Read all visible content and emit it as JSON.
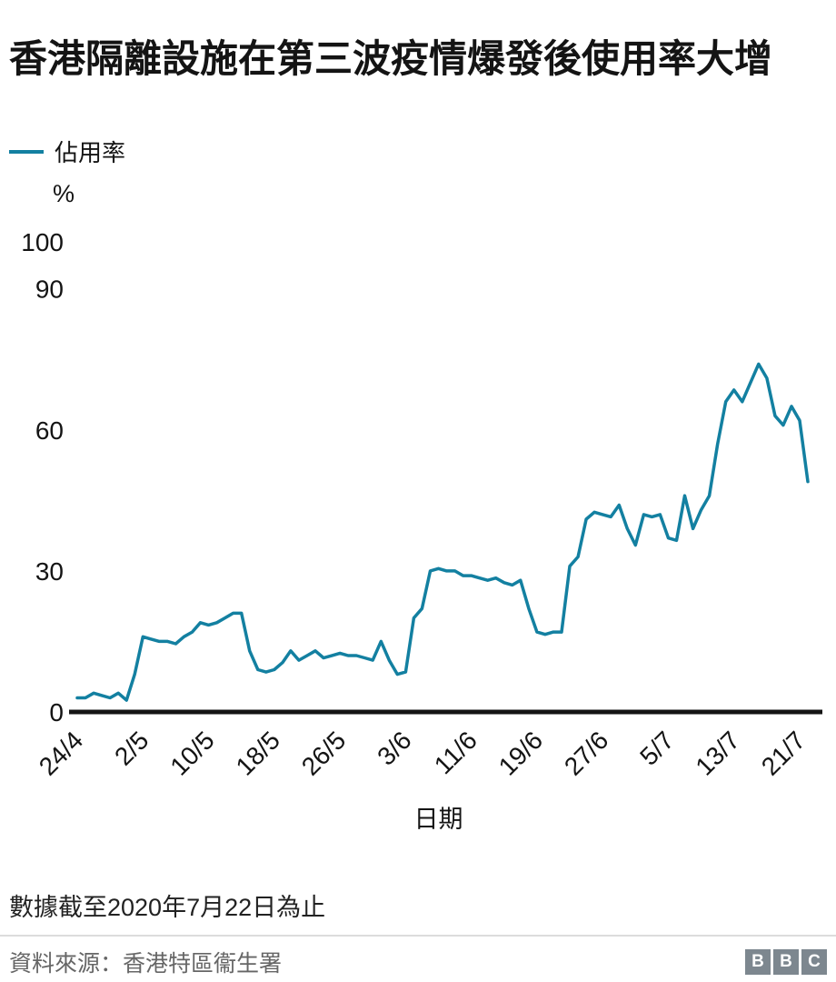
{
  "header": {
    "title": "香港隔離設施在第三波疫情爆發後使用率大增"
  },
  "legend": {
    "items": [
      {
        "label": "佔用率",
        "color": "#1380A1"
      }
    ]
  },
  "chart_data": {
    "type": "line",
    "title": "香港隔離設施在第三波疫情爆發後使用率大增",
    "xlabel": "日期",
    "ylabel": "%",
    "ylim": [
      0,
      100
    ],
    "yticks": [
      0,
      30,
      60,
      90,
      100
    ],
    "grid": false,
    "legend_position": "top-left",
    "xtick_every": 8,
    "xtick_labels": [
      "24/4",
      "2/5",
      "10/5",
      "18/5",
      "26/5",
      "3/6",
      "11/6",
      "19/6",
      "27/6",
      "5/7",
      "13/7",
      "21/7"
    ],
    "x": [
      "24/4",
      "25/4",
      "26/4",
      "27/4",
      "28/4",
      "29/4",
      "30/4",
      "1/5",
      "2/5",
      "3/5",
      "4/5",
      "5/5",
      "6/5",
      "7/5",
      "8/5",
      "9/5",
      "10/5",
      "11/5",
      "12/5",
      "13/5",
      "14/5",
      "15/5",
      "16/5",
      "17/5",
      "18/5",
      "19/5",
      "20/5",
      "21/5",
      "22/5",
      "23/5",
      "24/5",
      "25/5",
      "26/5",
      "27/5",
      "28/5",
      "29/5",
      "30/5",
      "31/5",
      "1/6",
      "2/6",
      "3/6",
      "4/6",
      "5/6",
      "6/6",
      "7/6",
      "8/6",
      "9/6",
      "10/6",
      "11/6",
      "12/6",
      "13/6",
      "14/6",
      "15/6",
      "16/6",
      "17/6",
      "18/6",
      "19/6",
      "20/6",
      "21/6",
      "22/6",
      "23/6",
      "24/6",
      "25/6",
      "26/6",
      "27/6",
      "28/6",
      "29/6",
      "30/6",
      "1/7",
      "2/7",
      "3/7",
      "4/7",
      "5/7",
      "6/7",
      "7/7",
      "8/7",
      "9/7",
      "10/7",
      "11/7",
      "12/7",
      "13/7",
      "14/7",
      "15/7",
      "16/7",
      "17/7",
      "18/7",
      "19/7",
      "20/7",
      "21/7",
      "22/7"
    ],
    "series": [
      {
        "name": "佔用率",
        "color": "#1380A1",
        "values": [
          3,
          3,
          4,
          3.5,
          3,
          4,
          2.5,
          8,
          16,
          15.5,
          15,
          15,
          14.5,
          16,
          17,
          19,
          18.5,
          19,
          20,
          21,
          21,
          13,
          9,
          8.5,
          9,
          10.5,
          13,
          11,
          12,
          13,
          11.5,
          12,
          12.5,
          12,
          12,
          11.5,
          11,
          15,
          11,
          8,
          8.5,
          20,
          22,
          30,
          30.5,
          30,
          30,
          29,
          29,
          28.5,
          28,
          28.5,
          27.5,
          27,
          28,
          22,
          17,
          16.5,
          17,
          17,
          31,
          33,
          41,
          42.5,
          42,
          41.5,
          44,
          39,
          35.5,
          42,
          41.5,
          42,
          37,
          36.5,
          46,
          39,
          43,
          46,
          57,
          66,
          68.5,
          66,
          70,
          74,
          71,
          63,
          61,
          65,
          62,
          49
        ]
      }
    ]
  },
  "footer": {
    "note": "數據截至2020年7月22日為止",
    "source": "資料來源：香港特區衞生署",
    "logo": [
      "B",
      "B",
      "C"
    ]
  },
  "colors": {
    "accent": "#1380A1",
    "axis": "#141414",
    "logo_gray": "#7d878f"
  }
}
